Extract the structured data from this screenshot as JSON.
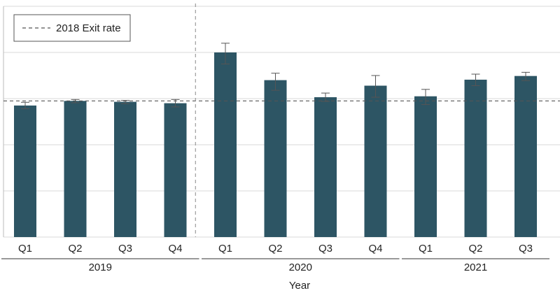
{
  "chart_data": {
    "type": "bar",
    "xlabel": "Year",
    "ylabel": "",
    "ylim": [
      0,
      5
    ],
    "grid": true,
    "legend": {
      "position": "top-left",
      "entries": [
        {
          "label": "2018 Exit rate",
          "style": "dashed-line"
        }
      ]
    },
    "reference_line": {
      "label": "2018 Exit rate",
      "value": 2.95
    },
    "vertical_divider_after_group": "2019",
    "groups": [
      {
        "label": "2019",
        "categories": [
          "Q1",
          "Q2",
          "Q3",
          "Q4"
        ]
      },
      {
        "label": "2020",
        "categories": [
          "Q1",
          "Q2",
          "Q3",
          "Q4"
        ]
      },
      {
        "label": "2021",
        "categories": [
          "Q1",
          "Q2",
          "Q3"
        ]
      }
    ],
    "categories": [
      "Q1",
      "Q2",
      "Q3",
      "Q4",
      "Q1",
      "Q2",
      "Q3",
      "Q4",
      "Q1",
      "Q2",
      "Q3"
    ],
    "values": [
      2.85,
      2.95,
      2.93,
      2.9,
      4.0,
      3.4,
      3.03,
      3.28,
      3.05,
      3.41,
      3.49
    ],
    "error_low": [
      2.78,
      2.91,
      2.89,
      2.82,
      3.75,
      3.18,
      2.94,
      3.03,
      2.87,
      3.28,
      3.39
    ],
    "error_high": [
      2.92,
      2.98,
      2.96,
      2.98,
      4.2,
      3.55,
      3.12,
      3.5,
      3.2,
      3.53,
      3.57
    ],
    "colors": {
      "bar": "#2d5564",
      "error": "#555555",
      "grid": "#d9d9d9",
      "reference": "#555555",
      "divider": "#888888"
    }
  }
}
